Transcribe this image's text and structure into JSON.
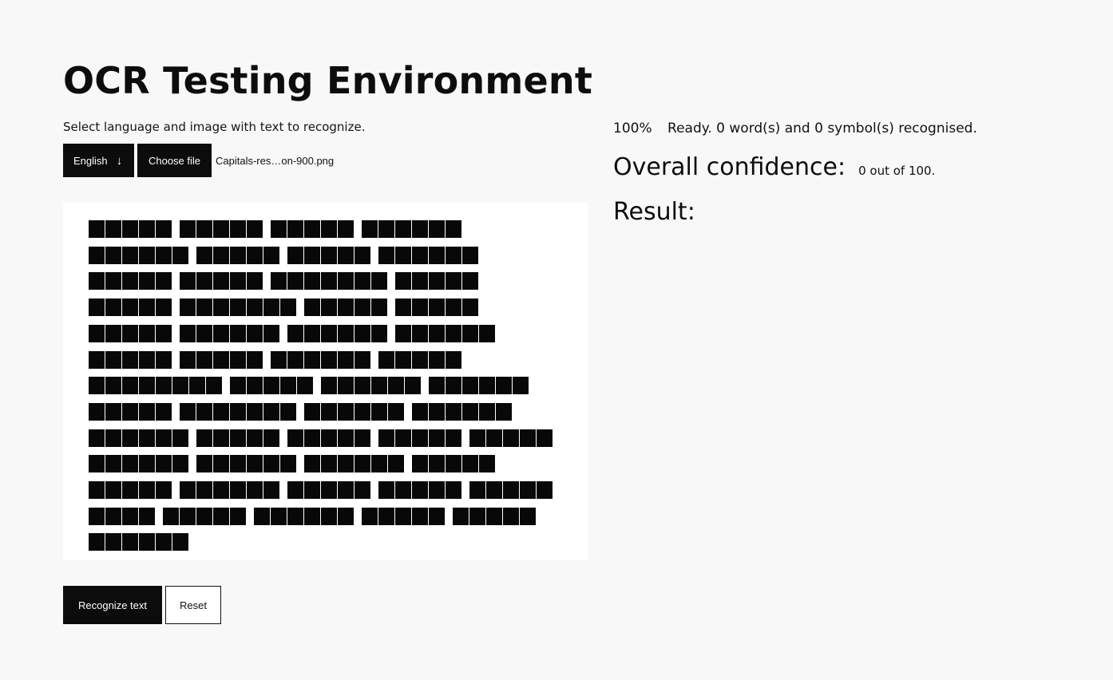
{
  "page": {
    "title": "OCR Testing Environment",
    "subtitle": "Select language and image with text to recognize."
  },
  "controls": {
    "language": "English",
    "language_arrow": "↓",
    "choose_file_label": "Choose file",
    "file_name": "Capitals-res…on-900.png"
  },
  "preview": {
    "lines": [
      [
        5,
        5,
        5,
        6
      ],
      [
        6,
        5,
        5,
        6
      ],
      [
        5,
        5,
        7,
        5
      ],
      [
        5,
        7,
        5,
        5
      ],
      [
        5,
        6,
        6,
        6
      ],
      [
        5,
        5,
        6,
        5
      ],
      [
        8,
        5,
        6,
        6
      ],
      [
        5,
        7,
        6,
        6
      ],
      [
        6,
        5,
        5,
        5,
        5
      ],
      [
        6,
        6,
        6,
        5
      ],
      [
        5,
        6,
        5,
        5,
        5
      ],
      [
        4,
        5,
        6,
        5,
        5
      ],
      [
        6
      ]
    ]
  },
  "actions": {
    "recognize_label": "Recognize text",
    "reset_label": "Reset"
  },
  "status": {
    "progress": "100%",
    "message": "Ready. 0 word(s) and 0 symbol(s) recognised."
  },
  "confidence": {
    "label": "Overall confidence:",
    "value": "0 out of 100."
  },
  "result": {
    "label": "Result:",
    "text": ""
  },
  "colors": {
    "background": "#f8f8f8",
    "button_dark": "#0c0c0c",
    "text": "#111111"
  }
}
